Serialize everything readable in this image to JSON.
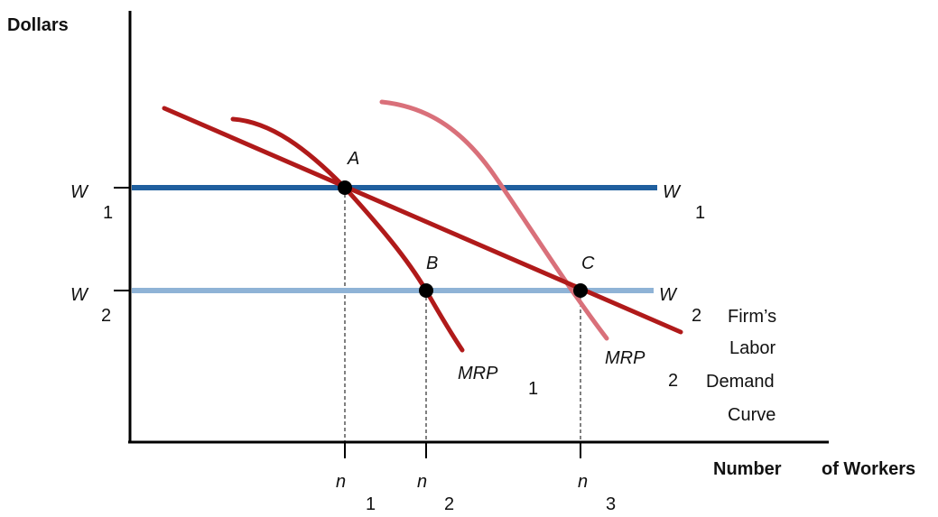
{
  "axes": {
    "y_title": "Dollars",
    "x_title_1": "Number",
    "x_title_2": "of Workers"
  },
  "wages": {
    "w1": {
      "letter": "W",
      "sub": "1"
    },
    "w2": {
      "letter": "W",
      "sub": "2"
    }
  },
  "workers": {
    "n1": {
      "letter": "n",
      "sub": "1"
    },
    "n2": {
      "letter": "n",
      "sub": "2"
    },
    "n3": {
      "letter": "n",
      "sub": "3"
    }
  },
  "points": {
    "a": "A",
    "b": "B",
    "c": "C"
  },
  "curves": {
    "mrp1": {
      "letter": "MRP",
      "sub": "1"
    },
    "mrp2": {
      "letter": "MRP",
      "sub": "2"
    },
    "demand": [
      "Firm’s",
      "Labor",
      "Demand",
      "Curve"
    ]
  },
  "colors": {
    "w1_line": "#1f5f9e",
    "w2_line": "#8fb3d6",
    "mrp1": "#b01a1a",
    "mrp2": "#d9707a",
    "demand": "#b01a1a",
    "axis": "#000000"
  }
}
